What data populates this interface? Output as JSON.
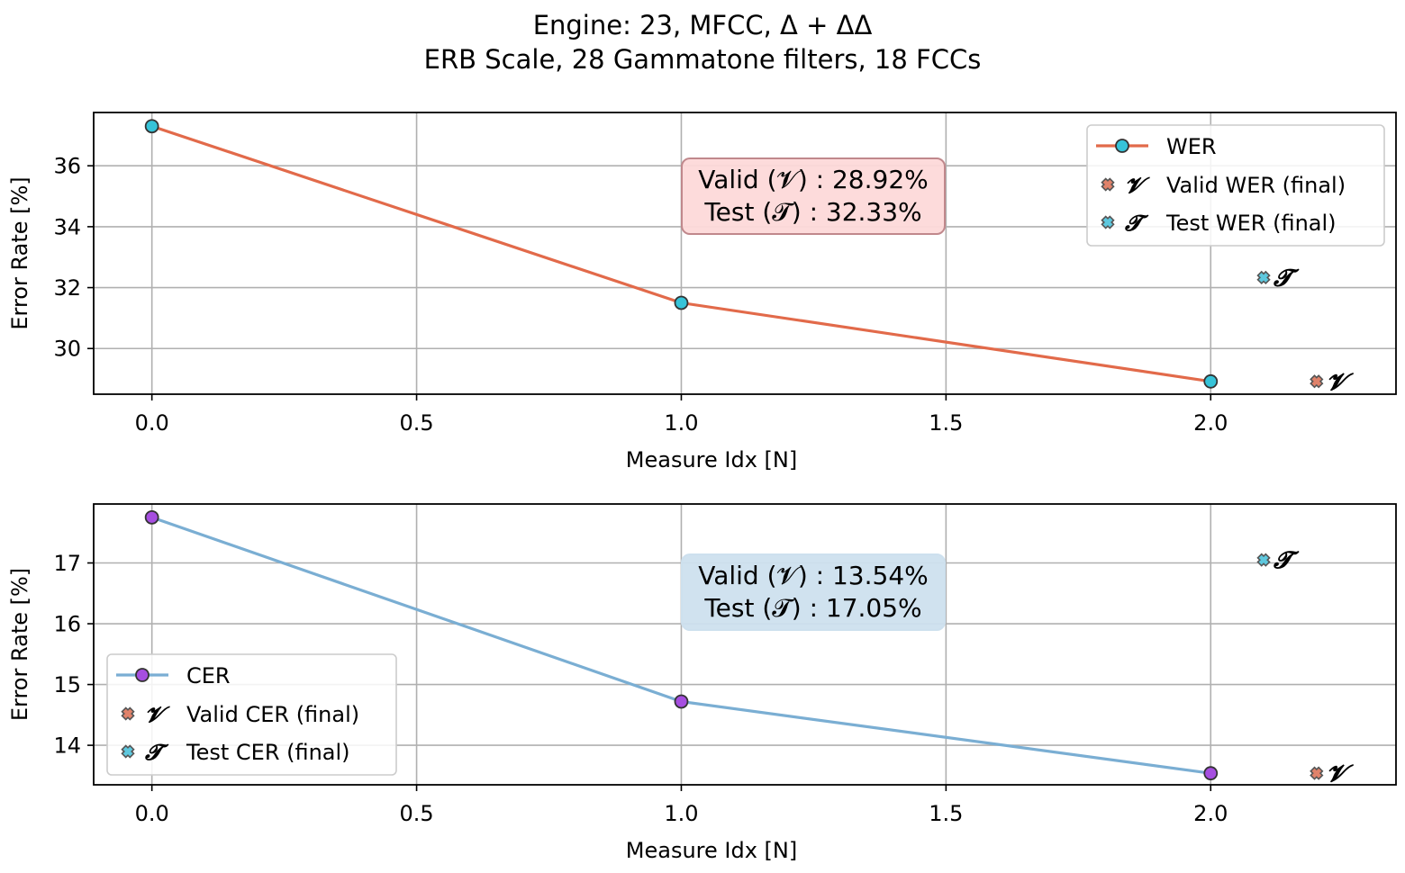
{
  "figure": {
    "title_line1": "Engine: 23, MFCC, Δ + ΔΔ",
    "title_line2": "ERB Scale, 28 Gammatone filters, 18 FCCs"
  },
  "colors": {
    "wer_line": "#e26a4a",
    "wer_marker": "#36c3d8",
    "cer_line": "#7aaed3",
    "cer_marker": "#a64ee0",
    "valid_marker": "#e0826a",
    "test_marker": "#5ec8de",
    "wer_box": "#fdd9d9",
    "wer_box_edge": "#c0888c",
    "cer_box": "#cde0ee",
    "grid": "#b0b0b0"
  },
  "chart_data": [
    {
      "type": "line",
      "id": "wer",
      "xlabel": "Measure Idx [N]",
      "ylabel": "Error Rate [%]",
      "xlim": [
        -0.11,
        2.35
      ],
      "ylim": [
        28.5,
        37.75
      ],
      "xticks": [
        0.0,
        0.5,
        1.0,
        1.5,
        2.0
      ],
      "xtick_labels": [
        "0.0",
        "0.5",
        "1.0",
        "1.5",
        "2.0"
      ],
      "yticks": [
        30,
        32,
        34,
        36
      ],
      "ytick_labels": [
        "30",
        "32",
        "34",
        "36"
      ],
      "grid": true,
      "series": [
        {
          "name": "WER",
          "x": [
            0,
            1,
            2
          ],
          "values": [
            37.3,
            31.5,
            28.92
          ]
        }
      ],
      "final_points": [
        {
          "label": "Valid WER (final)",
          "symbol": "𝓥",
          "x": 2.2,
          "y": 28.92,
          "kind": "valid"
        },
        {
          "label": "Test WER (final)",
          "symbol": "𝓣",
          "x": 2.1,
          "y": 32.33,
          "kind": "test"
        }
      ],
      "annotation": {
        "line1": "Valid (𝓥) :  28.92%",
        "line2": "Test (𝓣) :  32.33%"
      },
      "legend": {
        "placement": "top-right",
        "entries": [
          "WER",
          "Valid WER (final)",
          "Test WER (final)"
        ]
      }
    },
    {
      "type": "line",
      "id": "cer",
      "xlabel": "Measure Idx [N]",
      "ylabel": "Error Rate [%]",
      "xlim": [
        -0.11,
        2.35
      ],
      "ylim": [
        13.35,
        17.97
      ],
      "xticks": [
        0.0,
        0.5,
        1.0,
        1.5,
        2.0
      ],
      "xtick_labels": [
        "0.0",
        "0.5",
        "1.0",
        "1.5",
        "2.0"
      ],
      "yticks": [
        14,
        15,
        16,
        17
      ],
      "ytick_labels": [
        "14",
        "15",
        "16",
        "17"
      ],
      "grid": true,
      "series": [
        {
          "name": "CER",
          "x": [
            0,
            1,
            2
          ],
          "values": [
            17.75,
            14.72,
            13.54
          ]
        }
      ],
      "final_points": [
        {
          "label": "Valid CER (final)",
          "symbol": "𝓥",
          "x": 2.2,
          "y": 13.54,
          "kind": "valid"
        },
        {
          "label": "Test CER (final)",
          "symbol": "𝓣",
          "x": 2.1,
          "y": 17.05,
          "kind": "test"
        }
      ],
      "annotation": {
        "line1": "Valid (𝓥) :  13.54%",
        "line2": "Test (𝓣) :  17.05%"
      },
      "legend": {
        "placement": "bottom-left",
        "entries": [
          "CER",
          "Valid CER (final)",
          "Test CER (final)"
        ]
      }
    }
  ]
}
